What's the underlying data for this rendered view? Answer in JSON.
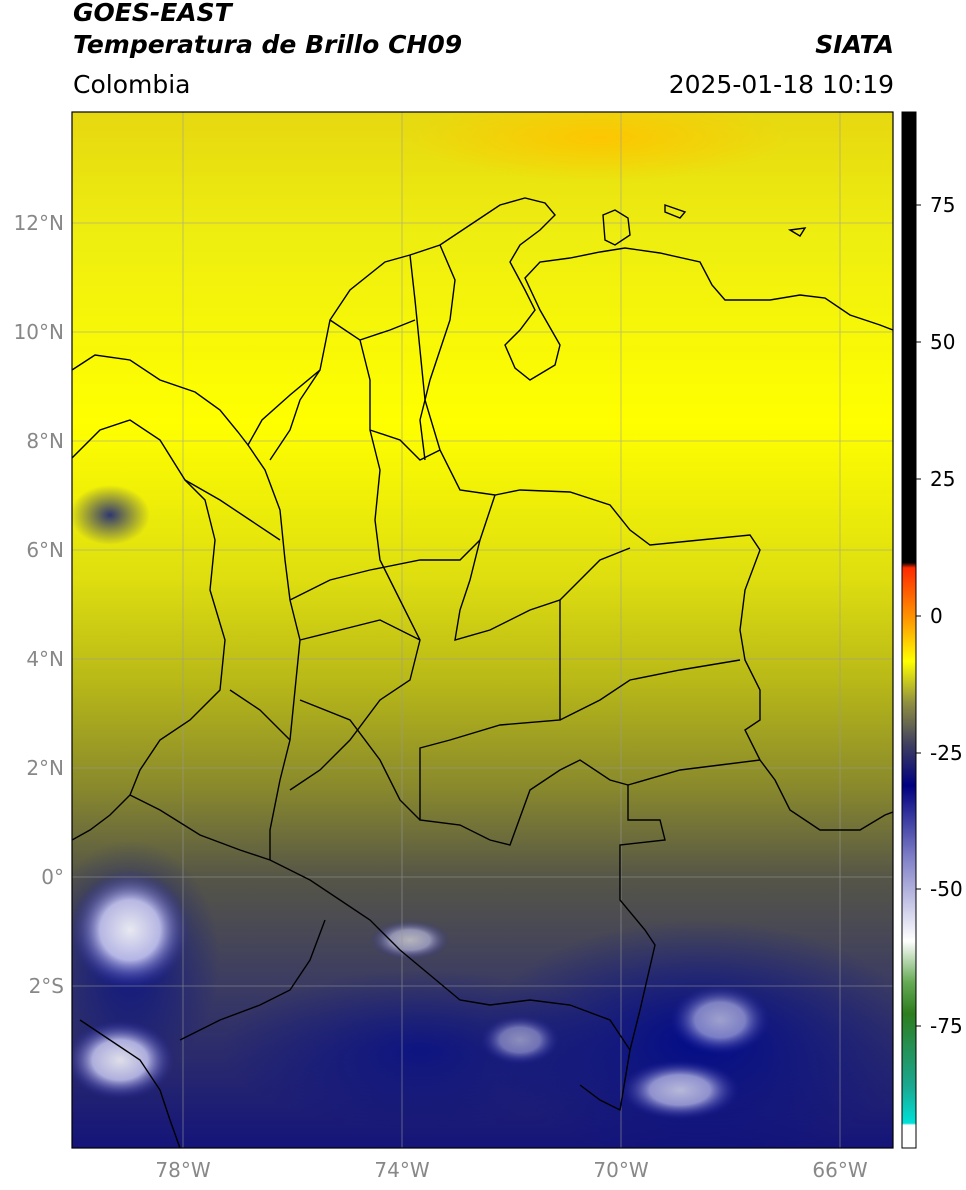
{
  "header": {
    "title_line1": "GOES-EAST",
    "title_line2": "Temperatura de Brillo CH09",
    "brand": "SIATA",
    "region": "Colombia",
    "datetime": "2025-01-18 10:19"
  },
  "map": {
    "lat_ticks": [
      "12°N",
      "10°N",
      "8°N",
      "6°N",
      "4°N",
      "2°N",
      "0°",
      "2°S"
    ],
    "lon_ticks": [
      "78°W",
      "74°W",
      "70°W",
      "66°W"
    ],
    "grid": true,
    "grid_color": "#9a9a9a"
  },
  "colorbar": {
    "ticks": [
      "75",
      "50",
      "25",
      "0",
      "-25",
      "-50",
      "-75"
    ],
    "colors": {
      "warm_limit": "#000000",
      "red": "#ff2a00",
      "orange": "#ff9900",
      "yellow": "#ffff00",
      "olive": "#6e6e2a",
      "navy": "#000080",
      "white": "#ffffff",
      "green": "#2e7d1e",
      "teal": "#00d8d0"
    }
  },
  "chart_data": {
    "type": "heatmap",
    "title": "Temperatura de Brillo CH09",
    "xlabel": "",
    "ylabel": "",
    "colorbar_ticks": [
      75,
      50,
      25,
      0,
      -25,
      -50,
      -75
    ],
    "lon_ticks": [
      -78,
      -74,
      -70,
      -66
    ],
    "lat_ticks": [
      12,
      10,
      8,
      6,
      4,
      2,
      0,
      -2
    ],
    "grid": true
  }
}
